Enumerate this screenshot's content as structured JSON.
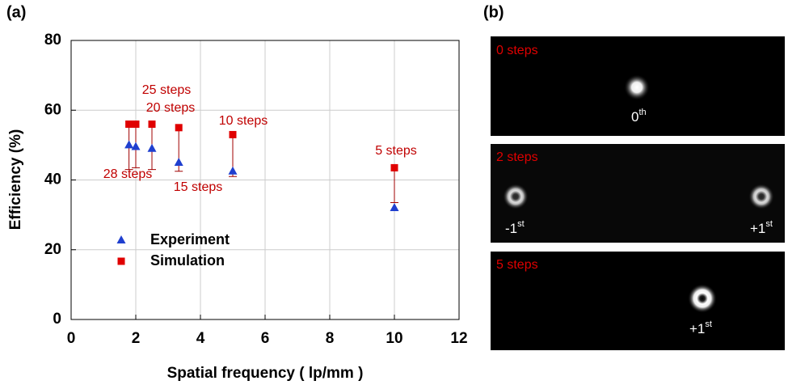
{
  "chart_data": {
    "type": "scatter",
    "panel_label": "(a)",
    "xlabel": "Spatial frequency ( lp/mm )",
    "ylabel": "Efficiency (%)",
    "xlim": [
      0,
      12
    ],
    "xticks": [
      0,
      2,
      4,
      6,
      8,
      10,
      12
    ],
    "ylim": [
      0,
      80
    ],
    "yticks": [
      0,
      20,
      40,
      60,
      80
    ],
    "grid": true,
    "legend": "lower left",
    "series": [
      {
        "name": "Experiment",
        "color": "#1f3fcf",
        "marker": "triangle",
        "x": [
          1.79,
          2.0,
          2.5,
          3.33,
          5.0,
          10.0
        ],
        "values": [
          50,
          49.5,
          49,
          45,
          42.5,
          32
        ]
      },
      {
        "name": "Simulation",
        "color": "#e00000",
        "marker": "square",
        "x": [
          1.79,
          2.0,
          2.5,
          3.33,
          5.0,
          10.0
        ],
        "values": [
          56,
          56,
          56,
          55,
          53,
          43.5
        ],
        "errors": [
          13,
          12.5,
          13,
          12.5,
          12,
          10
        ]
      }
    ],
    "annotations": [
      "28 steps",
      "25 steps",
      "20 steps",
      "15 steps",
      "10 steps",
      "5 steps"
    ]
  },
  "images": {
    "panel_label": "(b)",
    "panels": [
      {
        "label": "0 steps",
        "orders": [
          {
            "base": "0",
            "sup": "th"
          }
        ]
      },
      {
        "label": "2 steps",
        "orders": [
          {
            "base": "-1",
            "sup": "st"
          },
          {
            "base": "+1",
            "sup": "st"
          }
        ]
      },
      {
        "label": "5 steps",
        "orders": [
          {
            "base": "+1",
            "sup": "st"
          }
        ]
      }
    ]
  }
}
